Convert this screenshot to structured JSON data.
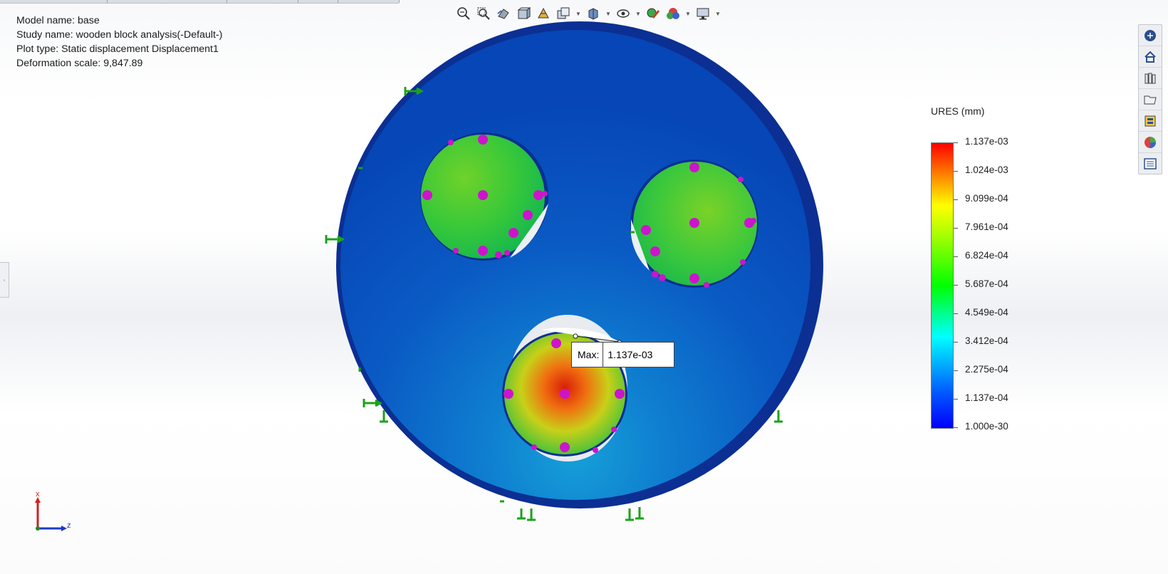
{
  "info": {
    "model_name": "Model name: base",
    "study_name": "Study name: wooden block analysis(-Default-)",
    "plot_type": "Plot type: Static displacement Displacement1",
    "deformation_scale": "Deformation scale: 9,847.89"
  },
  "annotation": {
    "label": "Max:",
    "value": "1.137e-03"
  },
  "legend": {
    "title": "URES (mm)",
    "values": [
      "1.137e-03",
      "1.024e-03",
      "9.099e-04",
      "7.961e-04",
      "6.824e-04",
      "5.687e-04",
      "4.549e-04",
      "3.412e-04",
      "2.275e-04",
      "1.137e-04",
      "1.000e-30"
    ]
  },
  "triad": {
    "x_label": "x",
    "z_label": "z"
  },
  "colors": {
    "fixture": "#1aa31a",
    "load_point": "#cc14cc",
    "model_blue": "#0c55c4"
  }
}
